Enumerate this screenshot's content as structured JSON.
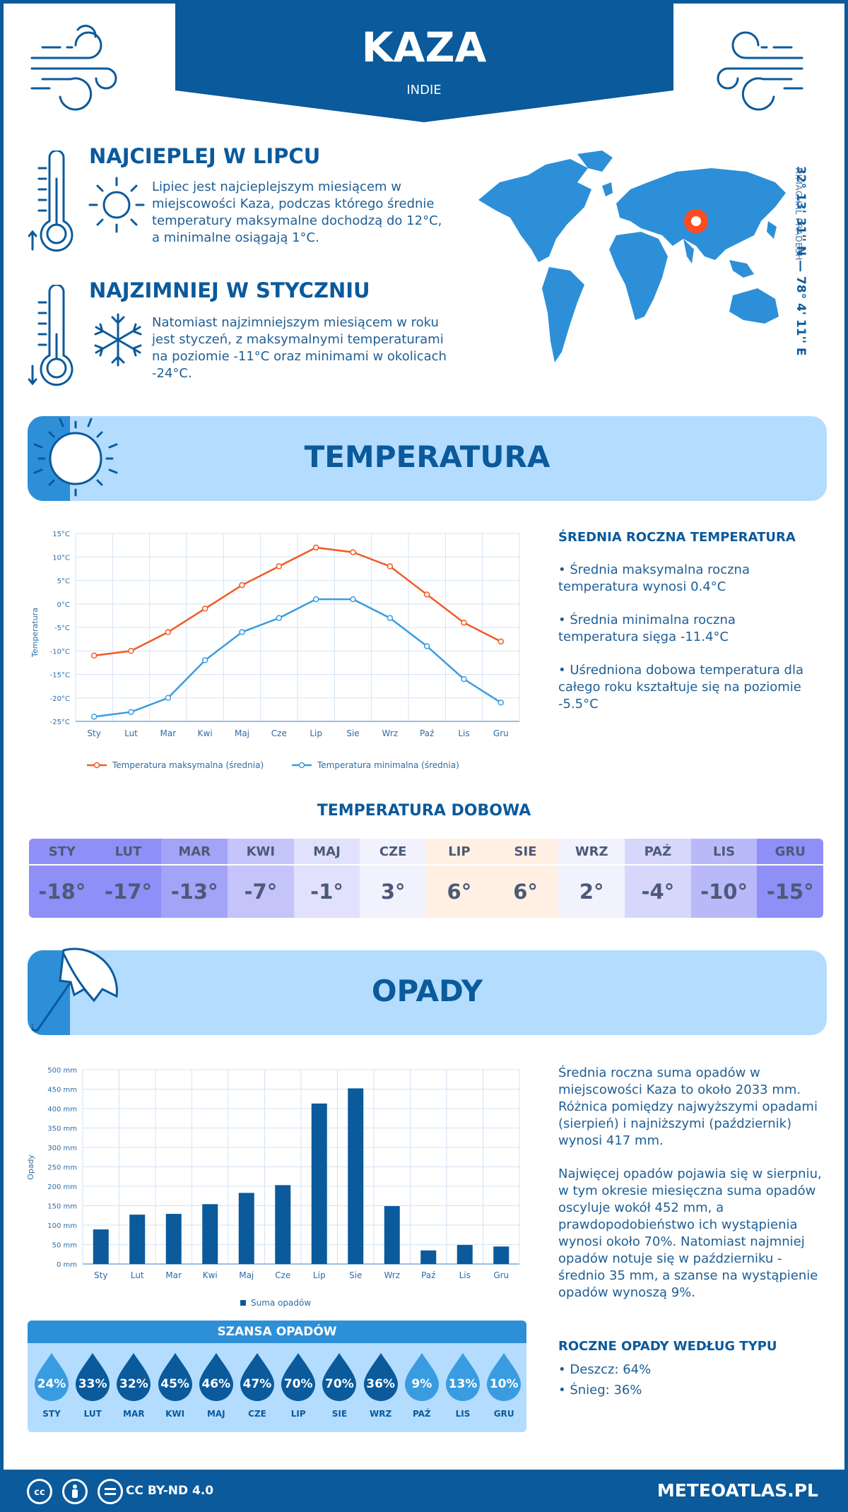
{
  "header": {
    "city": "KAZA",
    "country": "INDIE"
  },
  "hottest": {
    "title": "NAJCIEPLEJ W LIPCU",
    "text": "Lipiec jest najcieplejszym miesiącem w miejscowości Kaza, podczas którego średnie temperatury maksymalne dochodzą do 12°C, a minimalne osiągają 1°C."
  },
  "coldest": {
    "title": "NAJZIMNIEJ W STYCZNIU",
    "text": "Natomiast najzimniejszym miesiącem w roku jest styczeń, z maksymalnymi temperaturami na poziomie -11°C oraz minimami w okolicach -24°C."
  },
  "location": {
    "coords": "32° 13' 31'' N — 78° 4' 11'' E",
    "region": "HIMACHAL PRADESH"
  },
  "temperature_section": {
    "title": "TEMPERATURA",
    "side_title": "ŚREDNIA ROCZNA TEMPERATURA",
    "bullets": [
      "• Średnia maksymalna roczna temperatura wynosi 0.4°C",
      "• Średnia minimalna roczna temperatura sięga -11.4°C",
      "• Uśredniona dobowa temperatura dla całego roku kształtuje się na poziomie -5.5°C"
    ]
  },
  "daily": {
    "title": "TEMPERATURA DOBOWA",
    "months": [
      "STY",
      "LUT",
      "MAR",
      "KWI",
      "MAJ",
      "CZE",
      "LIP",
      "SIE",
      "WRZ",
      "PAŹ",
      "LIS",
      "GRU"
    ],
    "values": [
      "-18°",
      "-17°",
      "-13°",
      "-7°",
      "-1°",
      "3°",
      "6°",
      "6°",
      "2°",
      "-4°",
      "-10°",
      "-15°"
    ],
    "colors_head": [
      "#8f8ff7",
      "#8f8ff7",
      "#a3a3f7",
      "#c4c4fb",
      "#e1e1fd",
      "#f2f2fe",
      "#fff0e3",
      "#fff0e3",
      "#f2f2fe",
      "#d7d7fc",
      "#b9b9fa",
      "#8f8ff7"
    ],
    "colors_val": [
      "#8f8ff7",
      "#8f8ff7",
      "#a3a3f7",
      "#c4c4fb",
      "#e1e1fd",
      "#f2f2fe",
      "#fff0e3",
      "#fff0e3",
      "#f2f2fe",
      "#d7d7fc",
      "#b9b9fa",
      "#8f8ff7"
    ]
  },
  "precip_section": {
    "title": "OPADY",
    "text1": "Średnia roczna suma opadów w miejscowości Kaza to około 2033 mm. Różnica pomiędzy najwyższymi opadami (sierpień) i najniższymi (październik) wynosi 417 mm.",
    "text2": "Najwięcej opadów pojawia się w sierpniu, w tym okresie miesięczna suma opadów oscyluje wokół 452 mm, a prawdopodobieństwo ich wystąpienia wynosi około 70%. Natomiast najmniej opadów notuje się w październiku - średnio 35 mm, a szanse na wystąpienie opadów wynoszą 9%.",
    "type_title": "ROCZNE OPADY WEDŁUG TYPU",
    "types": [
      "• Deszcz: 64%",
      "• Śnieg: 36%"
    ]
  },
  "chance": {
    "title": "SZANSA OPADÓW",
    "months": [
      "STY",
      "LUT",
      "MAR",
      "KWI",
      "MAJ",
      "CZE",
      "LIP",
      "SIE",
      "WRZ",
      "PAŹ",
      "LIS",
      "GRU"
    ],
    "values": [
      "24%",
      "33%",
      "32%",
      "45%",
      "46%",
      "47%",
      "70%",
      "70%",
      "36%",
      "9%",
      "13%",
      "10%"
    ],
    "percent": [
      24,
      33,
      32,
      45,
      46,
      47,
      70,
      70,
      36,
      9,
      13,
      10
    ]
  },
  "footer": {
    "license": "CC BY-ND 4.0",
    "site": "METEOATLAS.PL"
  },
  "chart_data": [
    {
      "type": "line",
      "categories": [
        "Sty",
        "Lut",
        "Mar",
        "Kwi",
        "Maj",
        "Cze",
        "Lip",
        "Sie",
        "Wrz",
        "Paź",
        "Lis",
        "Gru"
      ],
      "series": [
        {
          "name": "Temperatura maksymalna (średnia)",
          "values": [
            -11,
            -10,
            -6,
            -1,
            4,
            8,
            12,
            11,
            8,
            2,
            -4,
            -8
          ],
          "color": "#f15a24"
        },
        {
          "name": "Temperatura minimalna (średnia)",
          "values": [
            -24,
            -23,
            -20,
            -12,
            -6,
            -3,
            1,
            1,
            -3,
            -9,
            -16,
            -21
          ],
          "color": "#3a9ce0"
        }
      ],
      "ylabel": "Temperatura",
      "ylim": [
        -25,
        15
      ],
      "yticks": [
        "15°C",
        "10°C",
        "5°C",
        "0°C",
        "-5°C",
        "-10°C",
        "-15°C",
        "-20°C",
        "-25°C"
      ],
      "grid": true,
      "legend": "bottom"
    },
    {
      "type": "bar",
      "categories": [
        "Sty",
        "Lut",
        "Mar",
        "Kwi",
        "Maj",
        "Cze",
        "Lip",
        "Sie",
        "Wrz",
        "Paź",
        "Lis",
        "Gru"
      ],
      "series": [
        {
          "name": "Suma opadów",
          "values": [
            89,
            127,
            129,
            154,
            183,
            203,
            413,
            452,
            149,
            35,
            49,
            45
          ],
          "color": "#0a5a9c"
        }
      ],
      "ylabel": "Opady",
      "ylim": [
        0,
        500
      ],
      "yticks": [
        "500 mm",
        "450 mm",
        "400 mm",
        "350 mm",
        "300 mm",
        "250 mm",
        "200 mm",
        "150 mm",
        "100 mm",
        "50 mm",
        "0 mm"
      ],
      "grid": true,
      "legend": "bottom"
    }
  ]
}
